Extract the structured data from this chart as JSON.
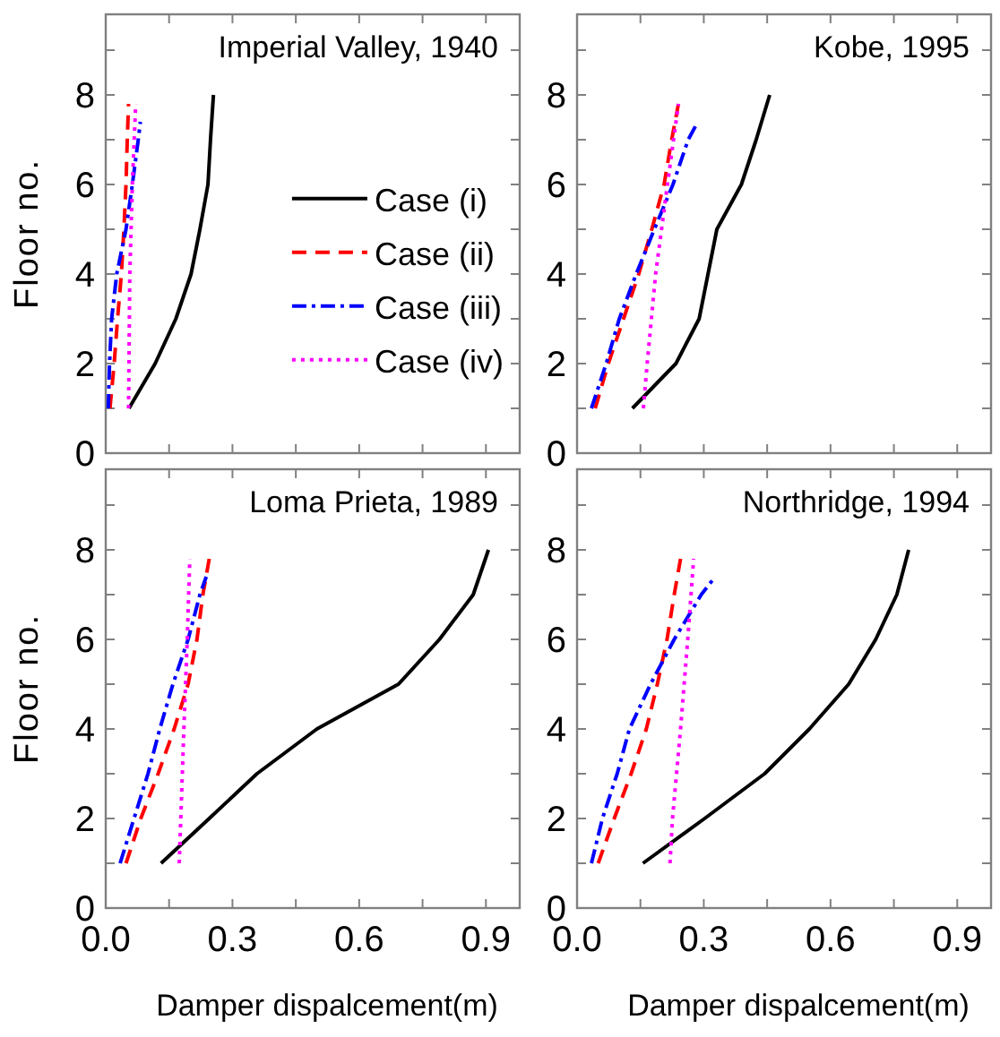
{
  "chart_data": [
    {
      "type": "line",
      "title": "Imperial Valley, 1940",
      "ylabel": "Floor no.",
      "xlim": [
        0,
        0.98
      ],
      "ylim": [
        0,
        9.8
      ],
      "xticks": [
        {
          "value": 0,
          "label": null
        },
        {
          "value": 0.15,
          "label": null
        },
        {
          "value": 0.3,
          "label": null
        },
        {
          "value": 0.45,
          "label": null
        },
        {
          "value": 0.6,
          "label": null
        },
        {
          "value": 0.75,
          "label": null
        },
        {
          "value": 0.9,
          "label": null
        }
      ],
      "yticks": [
        0,
        {
          "value": 1,
          "label": null
        },
        2,
        {
          "value": 3,
          "label": null
        },
        4,
        {
          "value": 5,
          "label": null
        },
        6,
        {
          "value": 7,
          "label": null
        },
        8,
        {
          "value": 9,
          "label": null
        }
      ],
      "tick_labels": "y",
      "legend": "right",
      "grid": false,
      "series": [
        {
          "name": "Case (i)",
          "color": "#000000",
          "line_style": "solid",
          "x": [
            0.055,
            0.117,
            0.166,
            0.202,
            0.223,
            0.242,
            0.248,
            0.255
          ],
          "values": [
            1,
            2,
            3,
            4,
            5,
            6,
            7,
            8
          ]
        },
        {
          "name": "Case (ii)",
          "color": "#ff0000",
          "line_style": "dashed",
          "x": [
            0.01,
            0.02,
            0.028,
            0.037,
            0.043,
            0.048,
            0.051,
            0.054
          ],
          "values": [
            1,
            2,
            3,
            4,
            5,
            6,
            7,
            7.8
          ]
        },
        {
          "name": "Case (iii)",
          "color": "#0000ff",
          "line_style": "dashdot",
          "x": [
            0.006,
            0.009,
            0.014,
            0.026,
            0.048,
            0.063,
            0.077,
            0.082
          ],
          "values": [
            1,
            2,
            3,
            4,
            5,
            6,
            7,
            7.4
          ]
        },
        {
          "name": "Case (iv)",
          "color": "#ff00ff",
          "line_style": "dotted",
          "x": [
            0.054,
            0.057,
            0.063,
            0.071
          ],
          "values": [
            1,
            4,
            6,
            7.8
          ]
        }
      ]
    },
    {
      "type": "line",
      "title": "Kobe, 1995",
      "xlim": [
        0,
        0.98
      ],
      "ylim": [
        0,
        9.8
      ],
      "xticks": [
        {
          "value": 0,
          "label": null
        },
        {
          "value": 0.15,
          "label": null
        },
        {
          "value": 0.3,
          "label": null
        },
        {
          "value": 0.45,
          "label": null
        },
        {
          "value": 0.6,
          "label": null
        },
        {
          "value": 0.75,
          "label": null
        },
        {
          "value": 0.9,
          "label": null
        }
      ],
      "yticks": [
        0,
        {
          "value": 1,
          "label": null
        },
        2,
        {
          "value": 3,
          "label": null
        },
        4,
        {
          "value": 5,
          "label": null
        },
        6,
        {
          "value": 7,
          "label": null
        },
        8,
        {
          "value": 9,
          "label": null
        }
      ],
      "tick_labels": "y",
      "grid": false,
      "series": [
        {
          "color": "#000000",
          "line_style": "solid",
          "x": [
            0.131,
            0.234,
            0.289,
            0.31,
            0.331,
            0.389,
            0.424,
            0.456
          ],
          "values": [
            1,
            2,
            3,
            4,
            5,
            6,
            7,
            8
          ]
        },
        {
          "color": "#ff0000",
          "line_style": "dashed",
          "x": [
            0.043,
            0.074,
            0.11,
            0.146,
            0.177,
            0.206,
            0.224,
            0.24
          ],
          "values": [
            1,
            2,
            3,
            4,
            5,
            6,
            7,
            7.8
          ]
        },
        {
          "color": "#0000ff",
          "line_style": "dashdot",
          "x": [
            0.034,
            0.069,
            0.1,
            0.14,
            0.183,
            0.227,
            0.263,
            0.286
          ],
          "values": [
            1,
            2,
            3,
            4,
            5,
            6,
            7,
            7.4
          ]
        },
        {
          "color": "#ff00ff",
          "line_style": "dotted",
          "x": [
            0.157,
            0.166,
            0.186,
            0.214,
            0.24
          ],
          "values": [
            1,
            2,
            4,
            6,
            7.8
          ]
        }
      ]
    },
    {
      "type": "line",
      "title": "Loma Prieta, 1989",
      "xlabel": "Damper dispalcement(m)",
      "ylabel": "Floor no.",
      "xlim": [
        0,
        0.98
      ],
      "ylim": [
        0,
        9.8
      ],
      "xticks": [
        {
          "value": 0,
          "label": "0.0"
        },
        {
          "value": 0.15,
          "label": null
        },
        0.3,
        {
          "value": 0.45,
          "label": null
        },
        0.6,
        {
          "value": 0.75,
          "label": null
        },
        0.9
      ],
      "yticks": [
        0,
        {
          "value": 1,
          "label": null
        },
        2,
        {
          "value": 3,
          "label": null
        },
        4,
        {
          "value": 5,
          "label": null
        },
        6,
        {
          "value": 7,
          "label": null
        },
        8,
        {
          "value": 9,
          "label": null
        }
      ],
      "grid": false,
      "series": [
        {
          "color": "#000000",
          "line_style": "solid",
          "x": [
            0.131,
            0.245,
            0.358,
            0.5,
            0.693,
            0.79,
            0.87,
            0.906
          ],
          "values": [
            1,
            2,
            3,
            4,
            5,
            6,
            7,
            8
          ]
        },
        {
          "color": "#ff0000",
          "line_style": "dashed",
          "x": [
            0.048,
            0.083,
            0.124,
            0.162,
            0.195,
            0.216,
            0.23,
            0.245
          ],
          "values": [
            1,
            2,
            3,
            4,
            5,
            6,
            7,
            7.8
          ]
        },
        {
          "color": "#0000ff",
          "line_style": "dashdot",
          "x": [
            0.034,
            0.067,
            0.1,
            0.128,
            0.159,
            0.195,
            0.223,
            0.238
          ],
          "values": [
            1,
            2,
            3,
            4,
            5,
            6,
            7,
            7.4
          ]
        },
        {
          "color": "#ff00ff",
          "line_style": "dotted",
          "x": [
            0.174,
            0.185,
            0.193,
            0.199
          ],
          "values": [
            1,
            4,
            6,
            7.8
          ]
        }
      ]
    },
    {
      "type": "line",
      "title": "Northridge, 1994",
      "xlabel": "Damper dispalcement(m)",
      "xlim": [
        0,
        0.98
      ],
      "ylim": [
        0,
        9.8
      ],
      "xticks": [
        {
          "value": 0,
          "label": "0.0"
        },
        {
          "value": 0.15,
          "label": null
        },
        0.3,
        {
          "value": 0.45,
          "label": null
        },
        0.6,
        {
          "value": 0.75,
          "label": null
        },
        0.9
      ],
      "yticks": [
        0,
        {
          "value": 1,
          "label": null
        },
        2,
        {
          "value": 3,
          "label": null
        },
        4,
        {
          "value": 5,
          "label": null
        },
        6,
        {
          "value": 7,
          "label": null
        },
        8,
        {
          "value": 9,
          "label": null
        }
      ],
      "grid": false,
      "series": [
        {
          "color": "#000000",
          "line_style": "solid",
          "x": [
            0.156,
            0.302,
            0.444,
            0.55,
            0.643,
            0.707,
            0.757,
            0.785
          ],
          "values": [
            1,
            2,
            3,
            4,
            5,
            6,
            7,
            8
          ]
        },
        {
          "color": "#ff0000",
          "line_style": "dashed",
          "x": [
            0.05,
            0.088,
            0.128,
            0.164,
            0.19,
            0.213,
            0.23,
            0.245
          ],
          "values": [
            1,
            2,
            3,
            4,
            5,
            6,
            7,
            7.8
          ]
        },
        {
          "color": "#0000ff",
          "line_style": "dashdot",
          "x": [
            0.034,
            0.06,
            0.095,
            0.124,
            0.174,
            0.23,
            0.294,
            0.327
          ],
          "values": [
            1,
            2,
            3,
            4,
            5,
            6,
            7,
            7.4
          ]
        },
        {
          "color": "#ff00ff",
          "line_style": "dotted",
          "x": [
            0.22,
            0.226,
            0.245,
            0.262,
            0.276
          ],
          "values": [
            1,
            2,
            4,
            6,
            7.8
          ]
        }
      ]
    }
  ]
}
